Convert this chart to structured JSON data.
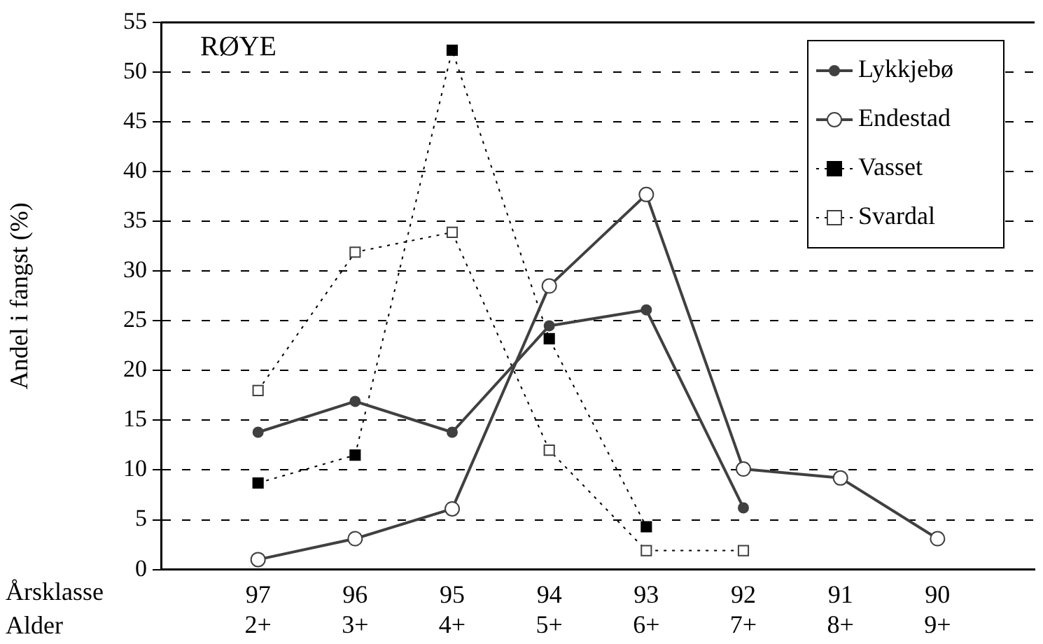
{
  "chart_data": {
    "type": "line",
    "title": "RØYE",
    "ylabel": "Andel i fangst (%)",
    "xlabel": "Årsklasse\nAlder",
    "categories": [
      null,
      "97\n2+",
      "96\n3+",
      "95\n4+",
      "94\n5+",
      "93\n6+",
      "92\n7+",
      "91\n8+",
      "90\n9+",
      null
    ],
    "ylim": [
      0,
      55
    ],
    "yticks": [
      0,
      5,
      10,
      15,
      20,
      25,
      30,
      35,
      40,
      45,
      50,
      55
    ],
    "grid": "y",
    "legend": "top right",
    "series": [
      {
        "name": "Lykkjebø",
        "color": "#404040",
        "marker": "circle",
        "line_style": "solid",
        "values": [
          null,
          13.8,
          16.9,
          13.8,
          24.5,
          26.1,
          6.2,
          null,
          null,
          null
        ]
      },
      {
        "name": "Endestad",
        "color": "#404040",
        "marker": "circle",
        "line_style": "solid",
        "values": [
          null,
          1.0,
          3.1,
          6.1,
          28.5,
          37.7,
          10.1,
          9.2,
          3.1,
          null
        ]
      },
      {
        "name": "Vasset",
        "color": "#000000",
        "marker": "square",
        "line_style": "dotted",
        "values": [
          null,
          8.7,
          11.5,
          52.2,
          23.2,
          4.3,
          null,
          null,
          null,
          null
        ]
      },
      {
        "name": "Svardal",
        "color": "#000000",
        "marker": "square",
        "line_style": "dotted",
        "values": [
          null,
          18.0,
          31.9,
          33.9,
          12.0,
          1.9,
          1.9,
          null,
          null,
          null
        ]
      }
    ]
  }
}
